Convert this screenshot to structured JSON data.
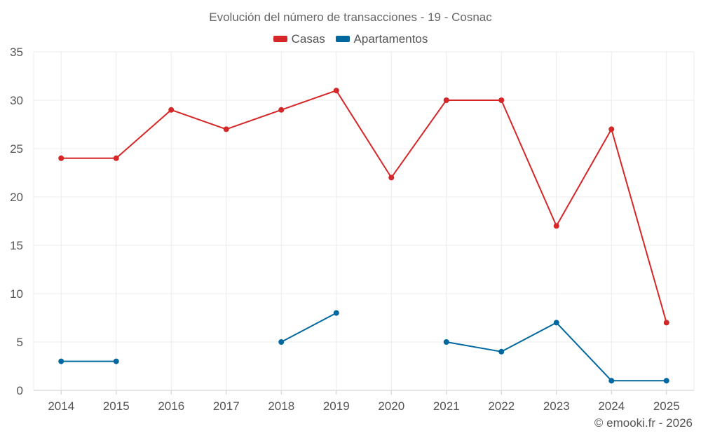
{
  "chart_data": {
    "type": "line",
    "title": "Evolución del número de transacciones - 19 - Cosnac",
    "categories": [
      "2014",
      "2015",
      "2016",
      "2017",
      "2018",
      "2019",
      "2020",
      "2021",
      "2022",
      "2023",
      "2024",
      "2025"
    ],
    "series": [
      {
        "name": "Casas",
        "color": "#d62728",
        "values": [
          24,
          24,
          29,
          27,
          29,
          31,
          22,
          30,
          30,
          17,
          27,
          7
        ]
      },
      {
        "name": "Apartamentos",
        "color": "#00689e",
        "values": [
          3,
          3,
          null,
          null,
          5,
          8,
          null,
          5,
          4,
          7,
          1,
          1
        ]
      }
    ],
    "ylim": [
      0,
      35
    ],
    "yticks": [
      0,
      5,
      10,
      15,
      20,
      25,
      30,
      35
    ],
    "xlabel": "",
    "ylabel": "",
    "grid": true,
    "legend": "top-center"
  },
  "footer": {
    "credit": "© emooki.fr - 2026"
  }
}
